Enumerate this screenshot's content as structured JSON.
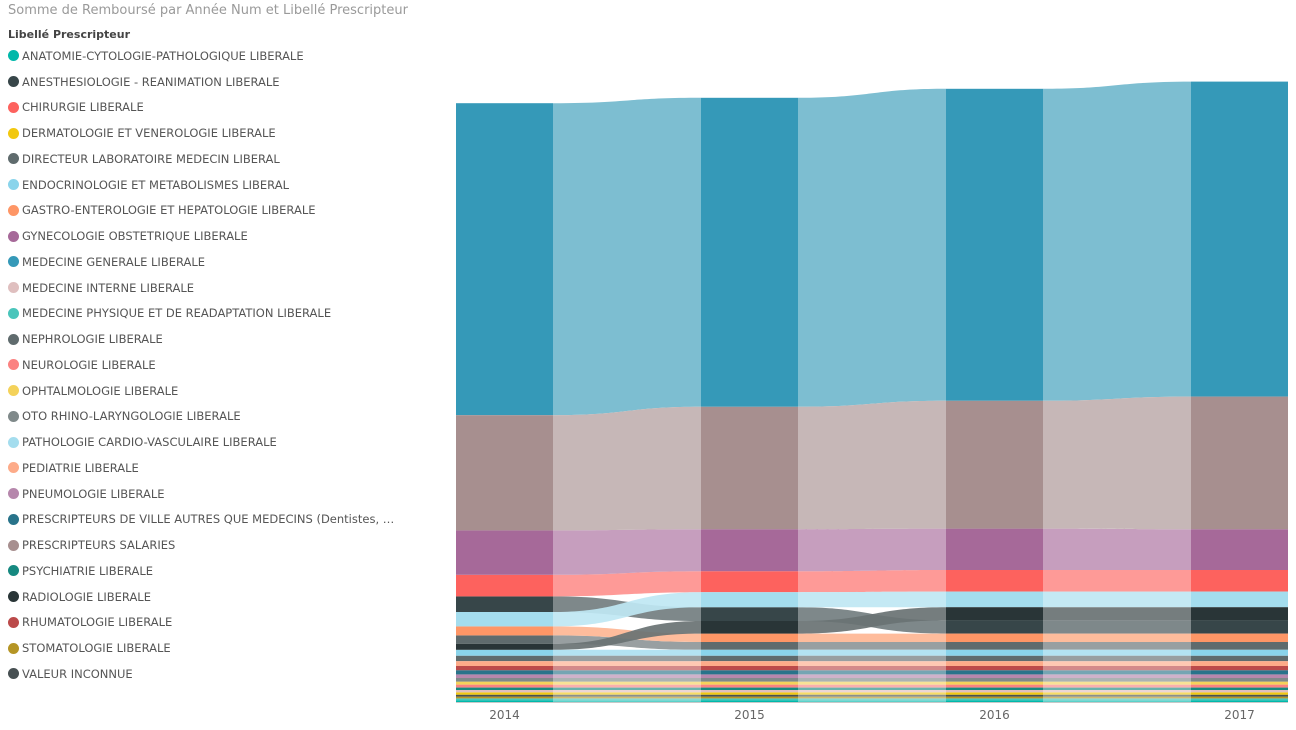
{
  "title": "Somme de Remboursé par Année Num et Libellé Prescripteur",
  "legend_title": "Libellé Prescripteur",
  "chart_data": {
    "type": "ribbon",
    "title": "Somme de Remboursé par Année Num et Libellé Prescripteur",
    "legend_title": "Libellé Prescripteur",
    "legend_position": "left",
    "x": [
      "2014",
      "2015",
      "2016",
      "2017"
    ],
    "ymax": 100,
    "series": [
      {
        "name": "ANATOMIE-CYTOLOGIE-PATHOLOGIQUE LIBERALE",
        "color": "#01B8AA",
        "values": [
          0.3,
          0.3,
          0.3,
          0.3
        ]
      },
      {
        "name": "ANESTHESIOLOGIE - REANIMATION LIBERALE",
        "color": "#374649",
        "values": [
          2.6,
          2.3,
          2.2,
          2.2
        ]
      },
      {
        "name": "CHIRURGIE LIBERALE",
        "color": "#FD625E",
        "values": [
          3.6,
          3.5,
          3.6,
          3.6
        ]
      },
      {
        "name": "DERMATOLOGIE ET VENEROLOGIE LIBERALE",
        "color": "#F2C80F",
        "values": [
          0.4,
          0.4,
          0.4,
          0.4
        ]
      },
      {
        "name": "DIRECTEUR LABORATOIRE MEDECIN LIBERAL",
        "color": "#5F6B6D",
        "values": [
          1.4,
          1.3,
          1.3,
          1.3
        ]
      },
      {
        "name": "ENDOCRINOLOGIE ET METABOLISMES LIBERAL",
        "color": "#8AD4EB",
        "values": [
          1.0,
          1.0,
          1.0,
          1.0
        ]
      },
      {
        "name": "GASTRO-ENTEROLOGIE ET HEPATOLOGIE LIBERALE",
        "color": "#FE9666",
        "values": [
          1.5,
          1.4,
          1.4,
          1.4
        ]
      },
      {
        "name": "GYNECOLOGIE OBSTETRIQUE LIBERALE",
        "color": "#A66999",
        "values": [
          7.4,
          7.0,
          6.9,
          6.8
        ]
      },
      {
        "name": "MEDECINE GENERALE LIBERALE",
        "color": "#3599B8",
        "values": [
          52.0,
          51.5,
          52.0,
          52.5
        ]
      },
      {
        "name": "MEDECINE INTERNE LIBERALE",
        "color": "#DFBFBF",
        "values": [
          0.4,
          0.4,
          0.4,
          0.4
        ]
      },
      {
        "name": "MEDECINE PHYSIQUE ET DE READAPTATION LIBERALE",
        "color": "#4AC5BB",
        "values": [
          0.3,
          0.3,
          0.3,
          0.3
        ]
      },
      {
        "name": "NEPHROLOGIE LIBERALE",
        "color": "#5F6B6D",
        "values": [
          0.9,
          0.9,
          0.9,
          0.9
        ]
      },
      {
        "name": "NEUROLOGIE LIBERALE",
        "color": "#FB8281",
        "values": [
          0.5,
          0.5,
          0.5,
          0.5
        ]
      },
      {
        "name": "OPHTALMOLOGIE LIBERALE",
        "color": "#F4D25A",
        "values": [
          0.5,
          0.5,
          0.5,
          0.5
        ]
      },
      {
        "name": "OTO RHINO-LARYNGOLOGIE LIBERALE",
        "color": "#7F898A",
        "values": [
          0.6,
          0.6,
          0.6,
          0.6
        ]
      },
      {
        "name": "PATHOLOGIE CARDIO-VASCULAIRE LIBERALE",
        "color": "#A4DDEE",
        "values": [
          2.4,
          2.5,
          2.6,
          2.6
        ]
      },
      {
        "name": "PEDIATRIE LIBERALE",
        "color": "#FDAB89",
        "values": [
          0.8,
          0.8,
          0.8,
          0.8
        ]
      },
      {
        "name": "PNEUMOLOGIE LIBERALE",
        "color": "#B687AC",
        "values": [
          0.6,
          0.6,
          0.6,
          0.6
        ]
      },
      {
        "name": "PRESCRIPTEURS DE VILLE AUTRES QUE MEDECINS (Dentistes, Auxiliaires médicaux, Laboratoires, Sages-femmes)",
        "color": "#28738A",
        "values": [
          0.7,
          0.7,
          0.7,
          0.7
        ]
      },
      {
        "name": "PRESCRIPTEURS SALARIES",
        "color": "#A78F8F",
        "values": [
          19.2,
          20.4,
          21.3,
          22.1
        ]
      },
      {
        "name": "PSYCHIATRIE LIBERALE",
        "color": "#168980",
        "values": [
          0.4,
          0.4,
          0.4,
          0.4
        ]
      },
      {
        "name": "RADIOLOGIE LIBERALE",
        "color": "#293537",
        "values": [
          1.0,
          2.1,
          2.2,
          2.2
        ]
      },
      {
        "name": "RHUMATOLOGIE LIBERALE",
        "color": "#BB4A4A",
        "values": [
          0.7,
          0.7,
          0.7,
          0.7
        ]
      },
      {
        "name": "STOMATOLOGIE LIBERALE",
        "color": "#B59525",
        "values": [
          0.3,
          0.3,
          0.3,
          0.3
        ]
      },
      {
        "name": "VALEUR INCONNUE",
        "color": "#475052",
        "values": [
          0.3,
          0.3,
          0.3,
          0.3
        ]
      }
    ]
  }
}
